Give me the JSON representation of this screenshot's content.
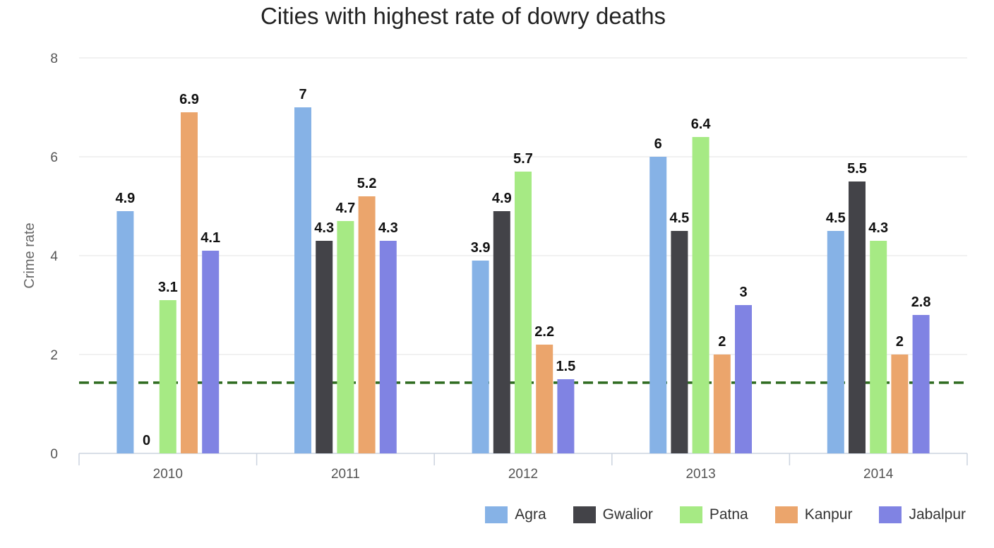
{
  "chart_data": {
    "type": "bar",
    "title": "Cities with highest rate of dowry deaths",
    "xlabel": "",
    "ylabel": "Crime rate",
    "categories": [
      "2010",
      "2011",
      "2012",
      "2013",
      "2014"
    ],
    "ylim": [
      0,
      8
    ],
    "yticks": [
      0,
      2,
      4,
      6,
      8
    ],
    "grid": true,
    "legend_position": "bottom-right",
    "reference_line": {
      "value": 1.43,
      "color": "#2e6b1f",
      "style": "dashed"
    },
    "series": [
      {
        "name": "Agra",
        "color": "#86b2e6",
        "values": [
          4.9,
          7,
          3.9,
          6,
          4.5
        ],
        "labels": [
          "4.9",
          "7",
          "3.9",
          "6",
          "4.5"
        ]
      },
      {
        "name": "Gwalior",
        "color": "#434348",
        "values": [
          0,
          4.3,
          4.9,
          4.5,
          5.5
        ],
        "labels": [
          "0",
          "4.3",
          "4.9",
          "4.5",
          "5.5"
        ]
      },
      {
        "name": "Patna",
        "color": "#a6ea84",
        "values": [
          3.1,
          4.7,
          5.7,
          6.4,
          4.3
        ],
        "labels": [
          "3.1",
          "4.7",
          "5.7",
          "6.4",
          "4.3"
        ]
      },
      {
        "name": "Kanpur",
        "color": "#eba56c",
        "values": [
          6.9,
          5.2,
          2.2,
          2,
          2
        ],
        "labels": [
          "6.9",
          "5.2",
          "2.2",
          "2",
          "2"
        ]
      },
      {
        "name": "Jabalpur",
        "color": "#8083e3",
        "values": [
          4.1,
          4.3,
          1.5,
          3,
          2.8
        ],
        "labels": [
          "4.1",
          "4.3",
          "1.5",
          "3",
          "2.8"
        ]
      }
    ]
  }
}
